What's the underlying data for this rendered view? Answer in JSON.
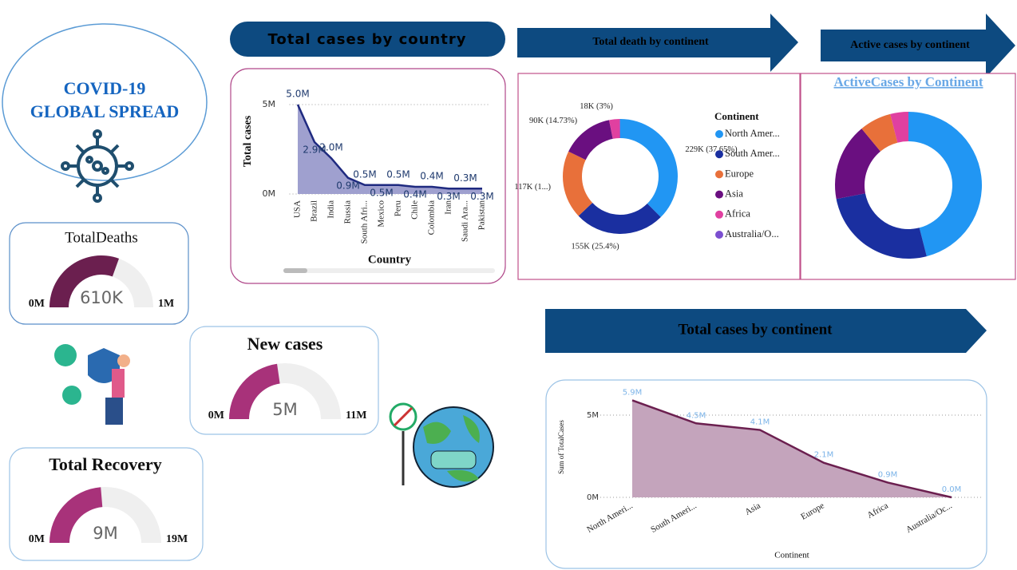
{
  "title_lines": [
    "COVID-19",
    "GLOBAL SPREAD"
  ],
  "chart_data": [
    {
      "type": "area",
      "banner": "Total cases by country",
      "x_label": "Country",
      "y_label": "Total cases",
      "categories": [
        "USA",
        "Brazil",
        "India",
        "Russia",
        "South Afri...",
        "Mexico",
        "Peru",
        "Chile",
        "Colombia",
        "Iran",
        "Saudi Ara...",
        "Pakistan"
      ],
      "values": [
        5000000,
        2900000,
        2000000,
        900000,
        500000,
        500000,
        500000,
        400000,
        400000,
        300000,
        300000,
        300000
      ],
      "value_labels": [
        "5.0M",
        "2.9M",
        "2.0M",
        "0.9M",
        "0.5M",
        "0.5M",
        "0.5M",
        "0.4M",
        "0.4M",
        "0.3M",
        "0.3M",
        "0.3M"
      ],
      "ylim": [
        0,
        5400000
      ],
      "yticks": [
        {
          "value": 0,
          "label": "0M"
        },
        {
          "value": 5000000,
          "label": "5M"
        }
      ],
      "grid": true,
      "color": "#1f2a80",
      "area_color": "#9fa0cf",
      "label_color": "#1f3a6e",
      "label_rotation": -90
    },
    {
      "type": "donut",
      "banner": "Total death by continent",
      "legend_title": "Continent",
      "categories": [
        "North Amer...",
        "South Amer...",
        "Europe",
        "Asia",
        "Africa",
        "Australia/O..."
      ],
      "values": [
        229000,
        155000,
        117000,
        90000,
        18000,
        1000
      ],
      "value_labels": [
        "229K (37.65%)",
        "155K (25.4%)",
        "117K (1...)",
        "90K (14.73%)",
        "18K (3%)",
        null
      ],
      "colors": [
        "#2196f3",
        "#1a2fa0",
        "#e8703a",
        "#6a0f80",
        "#e040a0",
        "#7b4fd0"
      ]
    },
    {
      "type": "donut",
      "banner": "Active cases by continent",
      "title": "ActiveCases by Continent",
      "values": [
        46,
        26,
        17,
        7,
        4
      ],
      "colors": [
        "#2196f3",
        "#1a2fa0",
        "#6a0f80",
        "#e8703a",
        "#e040a0"
      ]
    },
    {
      "type": "area",
      "banner": "Total cases by continent",
      "x_label": "Continent",
      "y_label": "Sum of TotalCases",
      "categories": [
        "North Ameri...",
        "South Ameri...",
        "Asia",
        "Europe",
        "Africa",
        "Australia/Oc..."
      ],
      "values": [
        5900000,
        4500000,
        4100000,
        2100000,
        900000,
        0
      ],
      "value_labels": [
        "5.9M",
        "4.5M",
        "4.1M",
        "2.1M",
        "0.9M",
        "0.0M"
      ],
      "ylim": [
        0,
        6000000
      ],
      "yticks": [
        {
          "value": 0,
          "label": "0M"
        },
        {
          "value": 5000000,
          "label": "5M"
        }
      ],
      "grid": true,
      "color": "#6b1f4f",
      "area_color": "#c4a4bc",
      "label_color": "#7cb4e8",
      "label_rotation": -30
    },
    {
      "type": "gauge",
      "title": "TotalDeaths",
      "values": [
        610000
      ],
      "value_labels": [
        "610K"
      ],
      "ylim": [
        0,
        1000000
      ],
      "yticks": [
        {
          "value": 0,
          "label": "0M"
        },
        {
          "value": 1000000,
          "label": "1M"
        }
      ],
      "color": "#6b1f4f"
    },
    {
      "type": "gauge",
      "title": "New cases",
      "values": [
        5000000
      ],
      "value_labels": [
        "5M"
      ],
      "ylim": [
        0,
        11000000
      ],
      "yticks": [
        {
          "value": 0,
          "label": "0M"
        },
        {
          "value": 11000000,
          "label": "11M"
        }
      ],
      "color": "#a8327a"
    },
    {
      "type": "gauge",
      "title": "Total Recovery",
      "values": [
        9000000
      ],
      "value_labels": [
        "9M"
      ],
      "ylim": [
        0,
        19000000
      ],
      "yticks": [
        {
          "value": 0,
          "label": "0M"
        },
        {
          "value": 19000000,
          "label": "19M"
        }
      ],
      "color": "#a8327a"
    }
  ]
}
